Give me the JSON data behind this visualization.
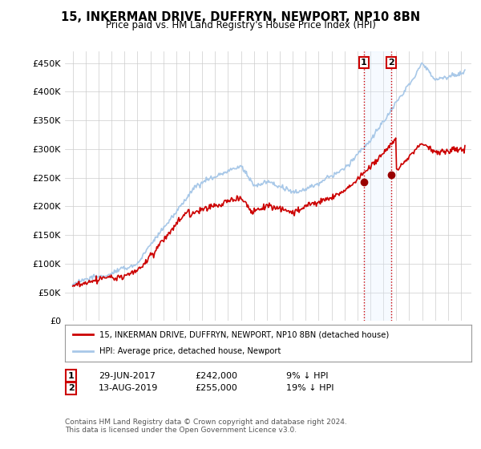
{
  "title": "15, INKERMAN DRIVE, DUFFRYN, NEWPORT, NP10 8BN",
  "subtitle": "Price paid vs. HM Land Registry's House Price Index (HPI)",
  "ylabel_ticks": [
    "£0",
    "£50K",
    "£100K",
    "£150K",
    "£200K",
    "£250K",
    "£300K",
    "£350K",
    "£400K",
    "£450K"
  ],
  "ytick_values": [
    0,
    50000,
    100000,
    150000,
    200000,
    250000,
    300000,
    350000,
    400000,
    450000
  ],
  "ylim": [
    0,
    470000
  ],
  "line_red_color": "#cc0000",
  "line_blue_color": "#a8c8e8",
  "marker_color": "#990000",
  "point1_date": 2017.5,
  "point1_value": 242000,
  "point2_date": 2019.62,
  "point2_value": 255000,
  "legend_label1": "15, INKERMAN DRIVE, DUFFRYN, NEWPORT, NP10 8BN (detached house)",
  "legend_label2": "HPI: Average price, detached house, Newport",
  "sale1_text": "29-JUN-2017",
  "sale1_price": "£242,000",
  "sale1_hpi": "9% ↓ HPI",
  "sale2_text": "13-AUG-2019",
  "sale2_price": "£255,000",
  "sale2_hpi": "19% ↓ HPI",
  "footer": "Contains HM Land Registry data © Crown copyright and database right 2024.\nThis data is licensed under the Open Government Licence v3.0.",
  "background_color": "#ffffff",
  "grid_color": "#cccccc",
  "shade_color": "#ddeeff"
}
